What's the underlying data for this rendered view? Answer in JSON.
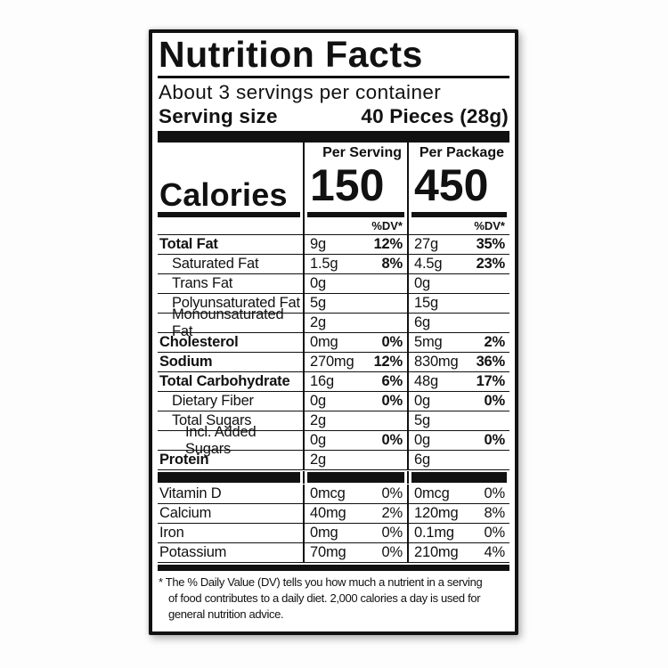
{
  "label": {
    "title": "Nutrition Facts",
    "servings_per_container": "About 3 servings per container",
    "serving_size_label": "Serving size",
    "serving_size_value": "40 Pieces (28g)",
    "columns": {
      "per_serving": "Per Serving",
      "per_package": "Per Package"
    },
    "calories": {
      "label": "Calories",
      "per_serving": "150",
      "per_package": "450"
    },
    "dv_header": "%DV*",
    "nutrients": [
      {
        "label": "Total Fat",
        "serv_amount": "9g",
        "serv_dv": "12%",
        "pack_amount": "27g",
        "pack_dv": "35%"
      },
      {
        "label": "Saturated Fat",
        "serv_amount": "1.5g",
        "serv_dv": "8%",
        "pack_amount": "4.5g",
        "pack_dv": "23%"
      },
      {
        "label": "Trans Fat",
        "serv_amount": "0g",
        "serv_dv": "",
        "pack_amount": "0g",
        "pack_dv": ""
      },
      {
        "label": "Polyunsaturated Fat",
        "serv_amount": "5g",
        "serv_dv": "",
        "pack_amount": "15g",
        "pack_dv": ""
      },
      {
        "label": "Monounsaturated Fat",
        "serv_amount": "2g",
        "serv_dv": "",
        "pack_amount": "6g",
        "pack_dv": ""
      },
      {
        "label": "Cholesterol",
        "serv_amount": "0mg",
        "serv_dv": "0%",
        "pack_amount": "5mg",
        "pack_dv": "2%"
      },
      {
        "label": "Sodium",
        "serv_amount": "270mg",
        "serv_dv": "12%",
        "pack_amount": "830mg",
        "pack_dv": "36%"
      },
      {
        "label": "Total Carbohydrate",
        "serv_amount": "16g",
        "serv_dv": "6%",
        "pack_amount": "48g",
        "pack_dv": "17%"
      },
      {
        "label": "Dietary Fiber",
        "serv_amount": "0g",
        "serv_dv": "0%",
        "pack_amount": "0g",
        "pack_dv": "0%"
      },
      {
        "label": "Total Sugars",
        "serv_amount": "2g",
        "serv_dv": "",
        "pack_amount": "5g",
        "pack_dv": ""
      },
      {
        "label": "Incl. Added Sugars",
        "serv_amount": "0g",
        "serv_dv": "0%",
        "pack_amount": "0g",
        "pack_dv": "0%"
      },
      {
        "label": "Protein",
        "serv_amount": "2g",
        "serv_dv": "",
        "pack_amount": "6g",
        "pack_dv": ""
      }
    ],
    "vitamins": [
      {
        "label": "Vitamin D",
        "serv_amount": "0mcg",
        "serv_dv": "0%",
        "pack_amount": "0mcg",
        "pack_dv": "0%"
      },
      {
        "label": "Calcium",
        "serv_amount": "40mg",
        "serv_dv": "2%",
        "pack_amount": "120mg",
        "pack_dv": "8%"
      },
      {
        "label": "Iron",
        "serv_amount": "0mg",
        "serv_dv": "0%",
        "pack_amount": "0.1mg",
        "pack_dv": "0%"
      },
      {
        "label": "Potassium",
        "serv_amount": "70mg",
        "serv_dv": "0%",
        "pack_amount": "210mg",
        "pack_dv": "4%"
      }
    ],
    "footnote_lines": [
      "* The % Daily Value (DV) tells you how much a nutrient in a serving",
      "of food contributes to a daily diet. 2,000 calories a day is used for",
      "general nutrition advice."
    ]
  },
  "colors": {
    "ink": "#111111",
    "card_bg": "#ffffff",
    "page_bg": "#fdfdfd"
  }
}
